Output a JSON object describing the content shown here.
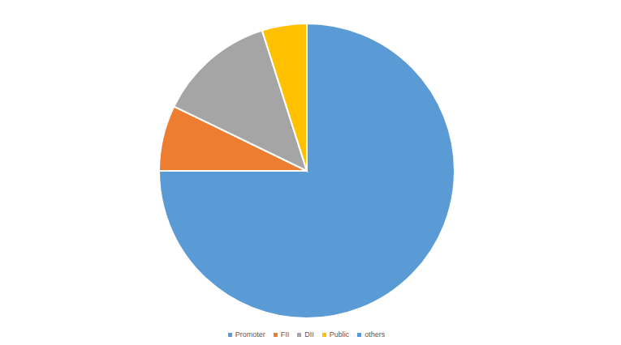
{
  "chart_data": {
    "type": "pie",
    "categories": [
      "Promoter",
      "FII",
      "DII",
      "Public",
      "others"
    ],
    "values": [
      75,
      7.2,
      12.9,
      4.9,
      0
    ],
    "colors": [
      "#5b9bd5",
      "#ed7d31",
      "#a5a5a5",
      "#ffc000",
      "#5b9bd5"
    ],
    "legend": "bottom"
  }
}
